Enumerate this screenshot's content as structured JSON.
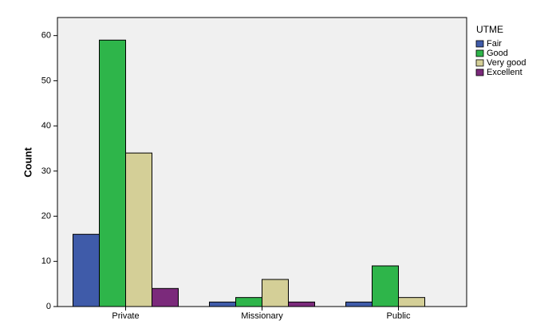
{
  "chart_data": {
    "type": "bar",
    "y_label": "Count",
    "categories": [
      "Private",
      "Missionary",
      "Public"
    ],
    "legend_title": "UTME",
    "legend_position": "right",
    "series": [
      {
        "name": "Fair",
        "color": "#3f5ba9",
        "values": [
          16,
          1,
          1
        ]
      },
      {
        "name": "Good",
        "color": "#2eb54a",
        "values": [
          59,
          2,
          9
        ]
      },
      {
        "name": "Very good",
        "color": "#d4cf97",
        "values": [
          34,
          6,
          2
        ]
      },
      {
        "name": "Excellent",
        "color": "#7b2a7b",
        "values": [
          4,
          1,
          null
        ]
      }
    ],
    "ylim": [
      0,
      64
    ],
    "yticks": [
      0,
      10,
      20,
      30,
      40,
      50,
      60
    ],
    "grid": false
  }
}
